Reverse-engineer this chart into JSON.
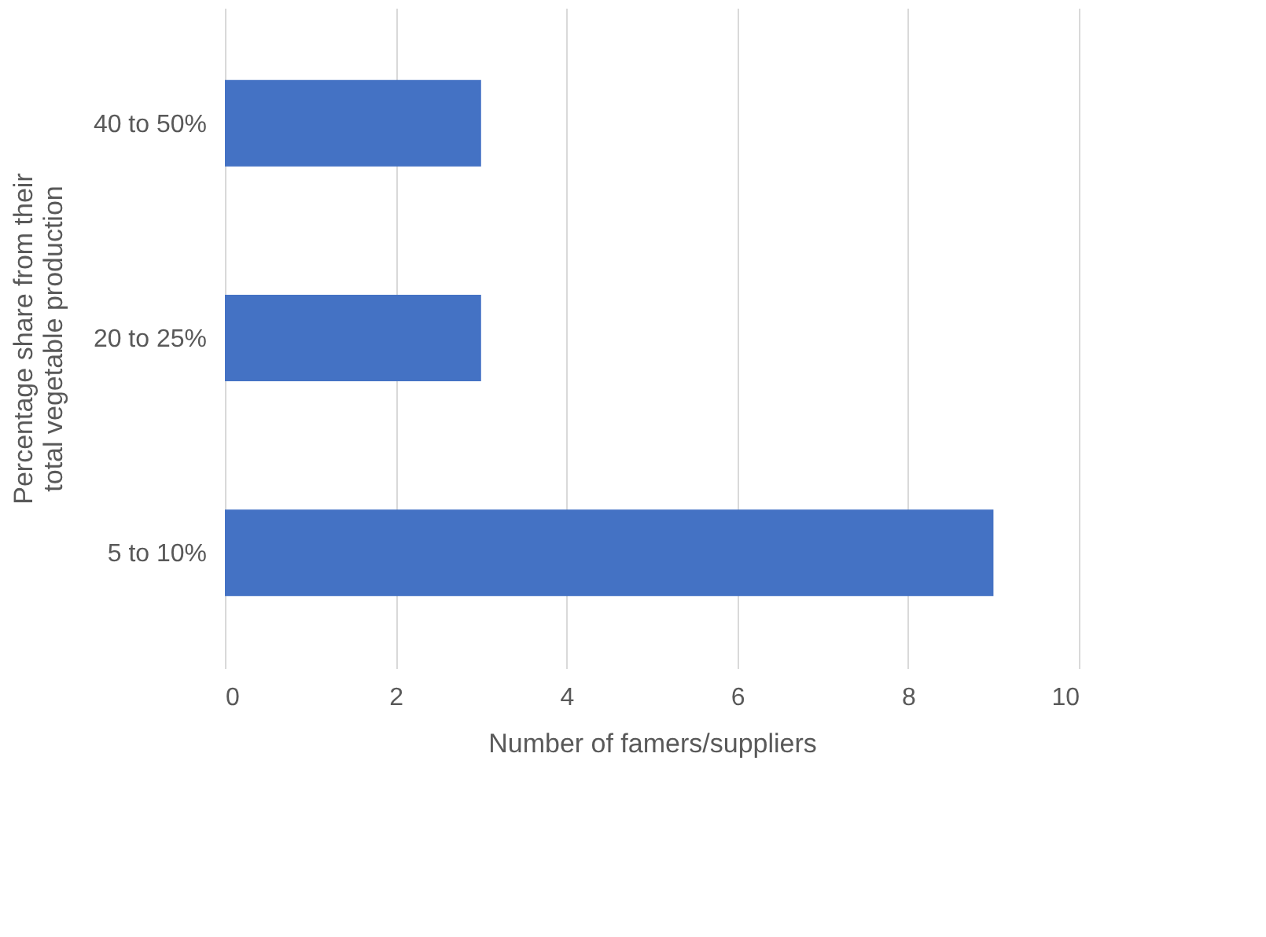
{
  "chart_data": {
    "type": "bar",
    "orientation": "horizontal",
    "categories": [
      "40 to 50%",
      "20 to 25%",
      "5 to 10%"
    ],
    "values": [
      3,
      3,
      9
    ],
    "color": "#4472c4",
    "xlim": [
      0,
      10
    ],
    "xticks": [
      0,
      2,
      4,
      6,
      8,
      10
    ],
    "grid": "x",
    "xlabel": "Number of famers/suppliers",
    "ylabel": "Percentage share from their total vegetable production"
  }
}
